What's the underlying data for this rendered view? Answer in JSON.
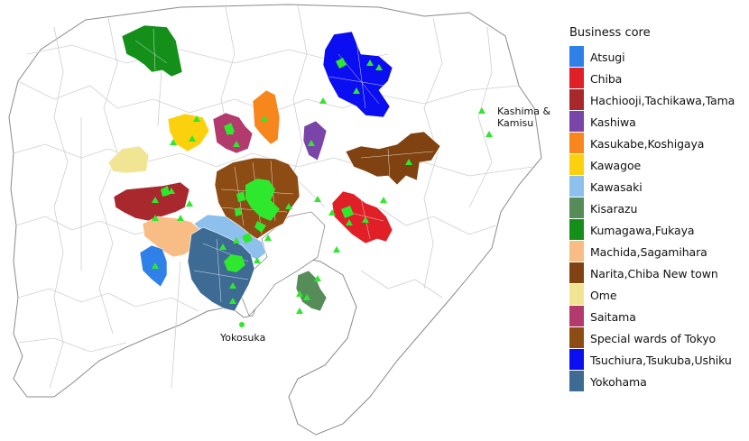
{
  "legend": {
    "title": "Business core",
    "items": [
      {
        "label": "Atsugi",
        "color": "#2f80e8"
      },
      {
        "label": "Chiba",
        "color": "#e01f26"
      },
      {
        "label": "Hachiooji,Tachikawa,Tama",
        "color": "#a8282e"
      },
      {
        "label": "Kashiwa",
        "color": "#7a45a8"
      },
      {
        "label": "Kasukabe,Koshigaya",
        "color": "#f7861d"
      },
      {
        "label": "Kawagoe",
        "color": "#fbd10e"
      },
      {
        "label": "Kawasaki",
        "color": "#8dc0ec"
      },
      {
        "label": "Kisarazu",
        "color": "#568c58"
      },
      {
        "label": "Kumagawa,Fukaya",
        "color": "#14901a"
      },
      {
        "label": "Machida,Sagamihara",
        "color": "#f7bd85"
      },
      {
        "label": "Narita,Chiba New town",
        "color": "#7f4210"
      },
      {
        "label": "Ome",
        "color": "#f1e594"
      },
      {
        "label": "Saitama",
        "color": "#b33a6d"
      },
      {
        "label": "Special wards of Tokyo",
        "color": "#8d4c14"
      },
      {
        "label": "Tsuchiura,Tsukuba,Ushiku",
        "color": "#0a0ef0"
      },
      {
        "label": "Yokohama",
        "color": "#3d6b93"
      }
    ]
  },
  "map_labels": {
    "kashima": "Kashima &\nKamisu",
    "yokosuka": "Yokosuka"
  },
  "colors": {
    "marker": "#2ee82e",
    "boundary": "#c9c9c9",
    "outline": "#8a8a8a"
  }
}
